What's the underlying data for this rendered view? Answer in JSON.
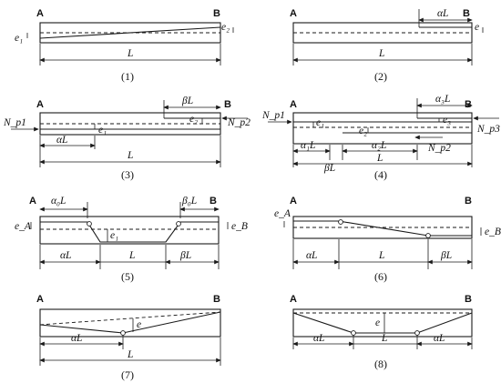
{
  "end_labels": {
    "left": "A",
    "right": "B"
  },
  "captions": [
    "(1)",
    "(2)",
    "(3)",
    "(4)",
    "(5)",
    "(6)",
    "(7)",
    "(8)"
  ],
  "dims": {
    "L": "L",
    "aL": "αL",
    "bL": "βL",
    "a0L": "α₀L",
    "b0L": "β₀L",
    "a1L": "α₁L",
    "a2L": "α₂L",
    "a3L": "α₃L"
  },
  "ecc": {
    "e": "e",
    "e1": "e₁",
    "e2": "e₂",
    "e3": "e₃",
    "eA": "e_A",
    "eB": "e_B"
  },
  "forces": {
    "Np1": "N_p1",
    "Np2": "N_p2",
    "Np3": "N_p3"
  }
}
